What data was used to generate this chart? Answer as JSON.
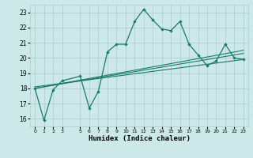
{
  "xlabel": "Humidex (Indice chaleur)",
  "xlim": [
    -0.5,
    23.5
  ],
  "ylim": [
    15.5,
    23.5
  ],
  "yticks": [
    16,
    17,
    18,
    19,
    20,
    21,
    22,
    23
  ],
  "xticks": [
    0,
    1,
    2,
    3,
    5,
    6,
    7,
    8,
    9,
    10,
    11,
    12,
    13,
    14,
    15,
    16,
    17,
    18,
    19,
    20,
    21,
    22,
    23
  ],
  "bg_color": "#cce8e8",
  "grid_color": "#aacccc",
  "line_color": "#1a7a6a",
  "main_x": [
    0,
    1,
    2,
    3,
    5,
    6,
    7,
    8,
    9,
    10,
    11,
    12,
    13,
    14,
    15,
    16,
    17,
    18,
    19,
    20,
    21,
    22,
    23
  ],
  "main_y": [
    18.0,
    15.9,
    17.9,
    18.5,
    18.8,
    16.7,
    17.8,
    20.4,
    20.9,
    20.9,
    22.4,
    23.2,
    22.5,
    21.9,
    21.8,
    22.4,
    20.9,
    20.2,
    19.5,
    19.8,
    20.9,
    20.0,
    19.9
  ],
  "trend_lines": [
    {
      "x": [
        0,
        23
      ],
      "y": [
        18.0,
        20.5
      ]
    },
    {
      "x": [
        0,
        23
      ],
      "y": [
        18.0,
        20.3
      ]
    },
    {
      "x": [
        0,
        23
      ],
      "y": [
        18.1,
        19.9
      ]
    }
  ]
}
